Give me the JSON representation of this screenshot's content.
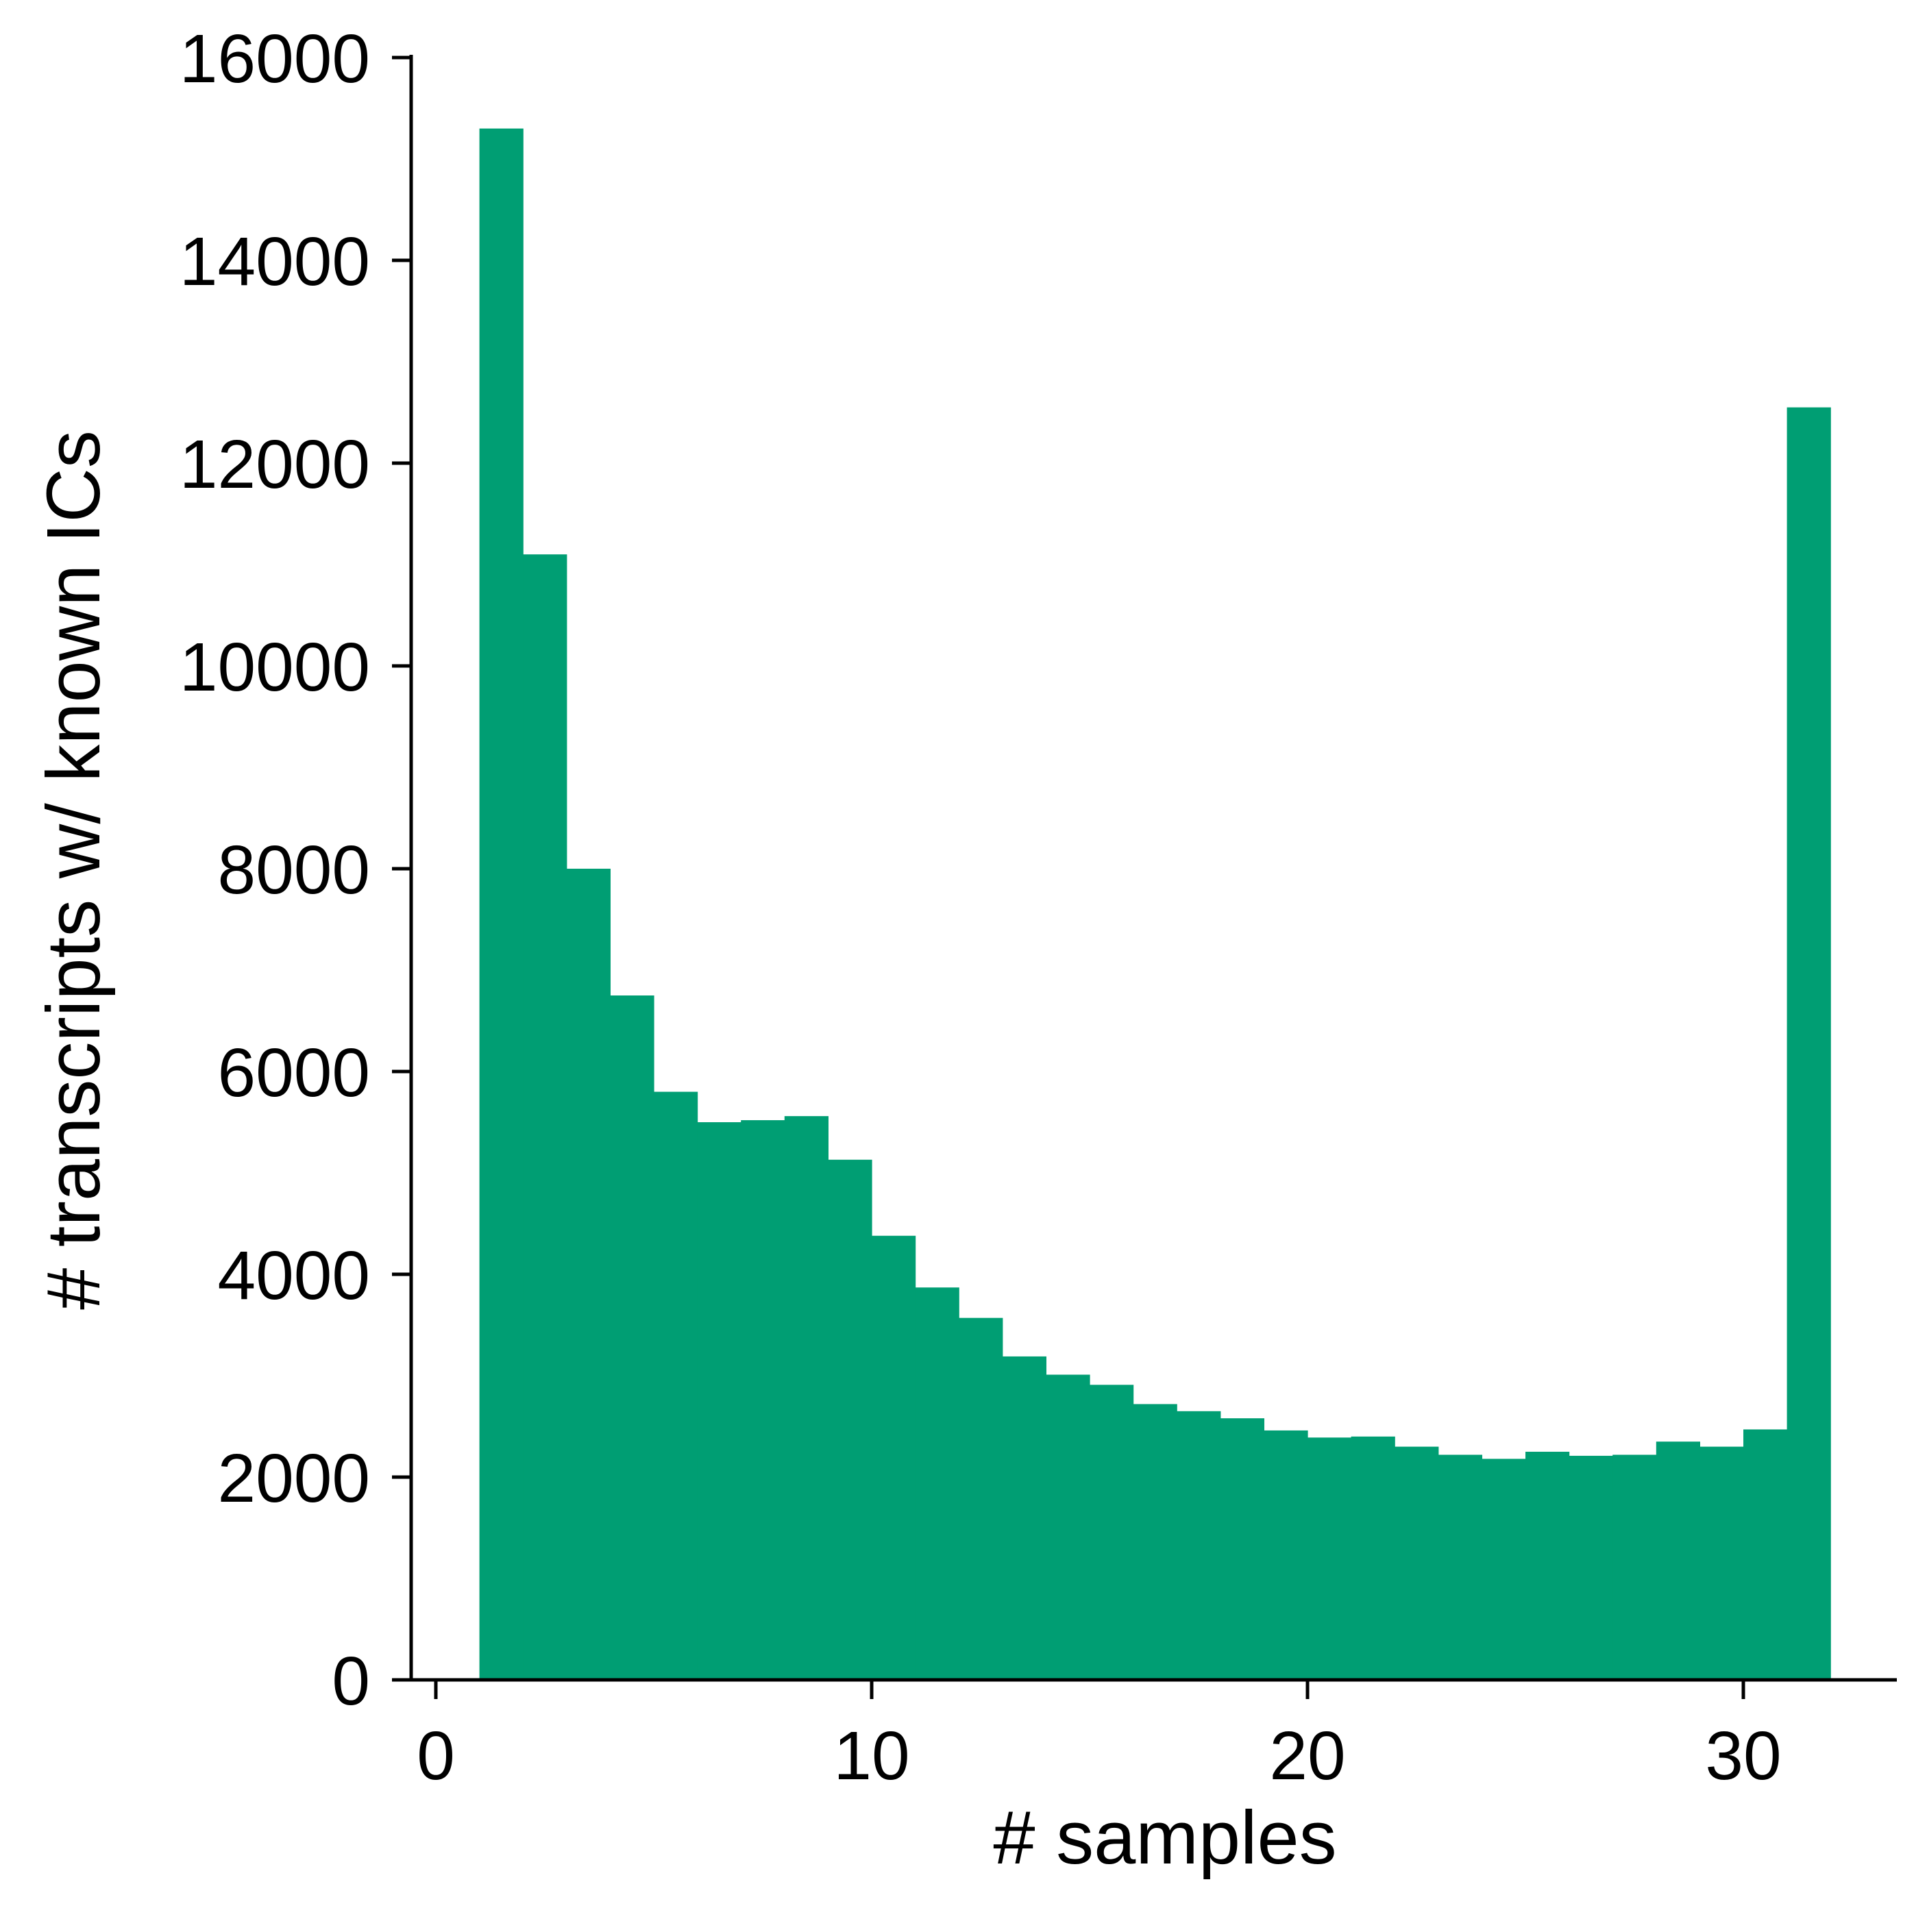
{
  "chart_data": {
    "type": "bar",
    "title": "",
    "xlabel": "# samples",
    "ylabel": "# transcripts w/ known ICs",
    "bar_color": "#009e73",
    "xlim": [
      -1,
      33
    ],
    "ylim": [
      0,
      16000
    ],
    "xticks": [
      0,
      10,
      20,
      30
    ],
    "yticks": [
      0,
      2000,
      4000,
      6000,
      8000,
      10000,
      12000,
      14000,
      16000
    ],
    "bin_edges": [
      1,
      2,
      3,
      4,
      5,
      6,
      7,
      8,
      9,
      10,
      11,
      12,
      13,
      14,
      15,
      16,
      17,
      18,
      19,
      20,
      21,
      22,
      23,
      24,
      25,
      26,
      27,
      28,
      29,
      30,
      31,
      32
    ],
    "values": [
      15300,
      11100,
      8000,
      6750,
      5800,
      5500,
      5520,
      5560,
      5130,
      4380,
      3870,
      3570,
      3190,
      3010,
      2910,
      2720,
      2650,
      2580,
      2460,
      2390,
      2400,
      2300,
      2220,
      2180,
      2250,
      2210,
      2220,
      2350,
      2300,
      2470,
      12550
    ],
    "grid": false,
    "legend": "none"
  }
}
